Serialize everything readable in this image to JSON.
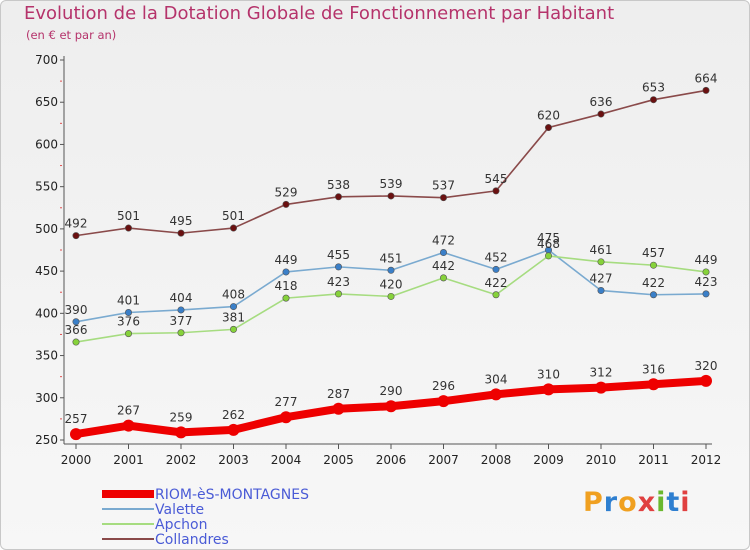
{
  "title": "Evolution de la Dotation Globale de Fonctionnement par Habitant",
  "subtitle": "(en € et par an)",
  "brand": "Proxiti",
  "brand_colors": [
    "#f0a020",
    "#2e7fd0",
    "#f0a020",
    "#e04040",
    "#6ab82e",
    "#2e7fd0",
    "#e04040"
  ],
  "chart_data": {
    "type": "line",
    "title": "Evolution de la Dotation Globale de Fonctionnement par Habitant",
    "subtitle": "(en € et par an)",
    "x": [
      2000,
      2001,
      2002,
      2003,
      2004,
      2005,
      2006,
      2007,
      2008,
      2009,
      2010,
      2011,
      2012
    ],
    "ylim": [
      250,
      700
    ],
    "yticks": [
      250,
      300,
      350,
      400,
      450,
      500,
      550,
      600,
      650,
      700
    ],
    "grid": false,
    "legend_position": "bottom-left",
    "series": [
      {
        "name": "RIOM-èS-MONTAGNES",
        "color": "#ee0000",
        "marker_color": "#ee0000",
        "emphasis": true,
        "values": [
          257,
          267,
          259,
          262,
          277,
          287,
          290,
          296,
          304,
          310,
          312,
          316,
          320
        ]
      },
      {
        "name": "Valette",
        "color": "#7aaad0",
        "marker_color": "#3a7fc8",
        "emphasis": false,
        "values": [
          390,
          401,
          404,
          408,
          449,
          455,
          451,
          472,
          452,
          475,
          427,
          422,
          423
        ]
      },
      {
        "name": "Apchon",
        "color": "#a6dc80",
        "marker_color": "#86d23a",
        "emphasis": false,
        "values": [
          366,
          376,
          377,
          381,
          418,
          423,
          420,
          442,
          422,
          468,
          461,
          457,
          449
        ]
      },
      {
        "name": "Collandres",
        "color": "#8a4a4a",
        "marker_color": "#6a1010",
        "emphasis": false,
        "values": [
          492,
          501,
          495,
          501,
          529,
          538,
          539,
          537,
          545,
          620,
          636,
          653,
          664
        ]
      }
    ]
  }
}
